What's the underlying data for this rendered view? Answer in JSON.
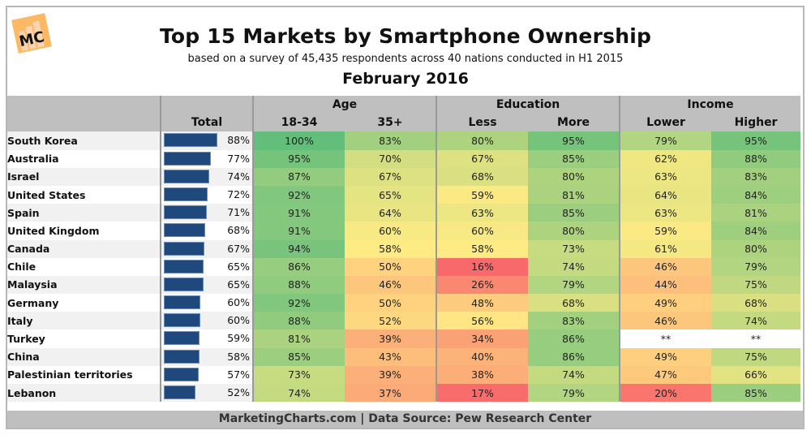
{
  "header": {
    "logo_text": "MC",
    "title": "Top 15 Markets by Smartphone Ownership",
    "subtitle": "based on a survey of 45,435 respondents across 40 nations conducted in H1 2015",
    "date": "February 2016"
  },
  "footer": {
    "text": "MarketingCharts.com | Data Source: Pew Research Center"
  },
  "colors": {
    "bar": "#1f497d",
    "header_bg": "#bfbfbf",
    "scale_low": "#f8696b",
    "scale_mid": "#ffeb84",
    "scale_high": "#63be7b",
    "na_bg": "#ffffff"
  },
  "chart_data": {
    "type": "table",
    "title": "Top 15 Markets by Smartphone Ownership",
    "subtitle": "based on a survey of 45,435 respondents across 40 nations conducted in H1 2015",
    "groups": [
      {
        "label": "",
        "columns": [
          "Total"
        ]
      },
      {
        "label": "Age",
        "columns": [
          "18-34",
          "35+"
        ]
      },
      {
        "label": "Education",
        "columns": [
          "Less",
          "More"
        ]
      },
      {
        "label": "Income",
        "columns": [
          "Lower",
          "Higher"
        ]
      }
    ],
    "columns": [
      "Total",
      "18-34",
      "35+",
      "Less",
      "More",
      "Lower",
      "Higher"
    ],
    "unit": "%",
    "na_label": "**",
    "rows": [
      {
        "country": "South Korea",
        "values": [
          88,
          100,
          83,
          80,
          95,
          79,
          95
        ]
      },
      {
        "country": "Australia",
        "values": [
          77,
          95,
          70,
          67,
          85,
          62,
          88
        ]
      },
      {
        "country": "Israel",
        "values": [
          74,
          87,
          67,
          68,
          80,
          63,
          83
        ]
      },
      {
        "country": "United States",
        "values": [
          72,
          92,
          65,
          59,
          81,
          64,
          84
        ]
      },
      {
        "country": "Spain",
        "values": [
          71,
          91,
          64,
          63,
          85,
          63,
          81
        ]
      },
      {
        "country": "United Kingdom",
        "values": [
          68,
          91,
          60,
          60,
          80,
          59,
          84
        ]
      },
      {
        "country": "Canada",
        "values": [
          67,
          94,
          58,
          58,
          73,
          61,
          80
        ]
      },
      {
        "country": "Chile",
        "values": [
          65,
          86,
          50,
          16,
          74,
          46,
          79
        ]
      },
      {
        "country": "Malaysia",
        "values": [
          65,
          88,
          46,
          26,
          79,
          44,
          75
        ]
      },
      {
        "country": "Germany",
        "values": [
          60,
          92,
          50,
          48,
          68,
          49,
          68
        ]
      },
      {
        "country": "Italy",
        "values": [
          60,
          88,
          52,
          56,
          83,
          46,
          74
        ]
      },
      {
        "country": "Turkey",
        "values": [
          59,
          81,
          39,
          34,
          86,
          null,
          null
        ]
      },
      {
        "country": "China",
        "values": [
          58,
          85,
          43,
          40,
          86,
          49,
          75
        ]
      },
      {
        "country": "Palestinian territories",
        "values": [
          57,
          73,
          39,
          38,
          74,
          47,
          66
        ]
      },
      {
        "country": "Lebanon",
        "values": [
          52,
          74,
          37,
          17,
          79,
          20,
          85
        ]
      }
    ]
  }
}
